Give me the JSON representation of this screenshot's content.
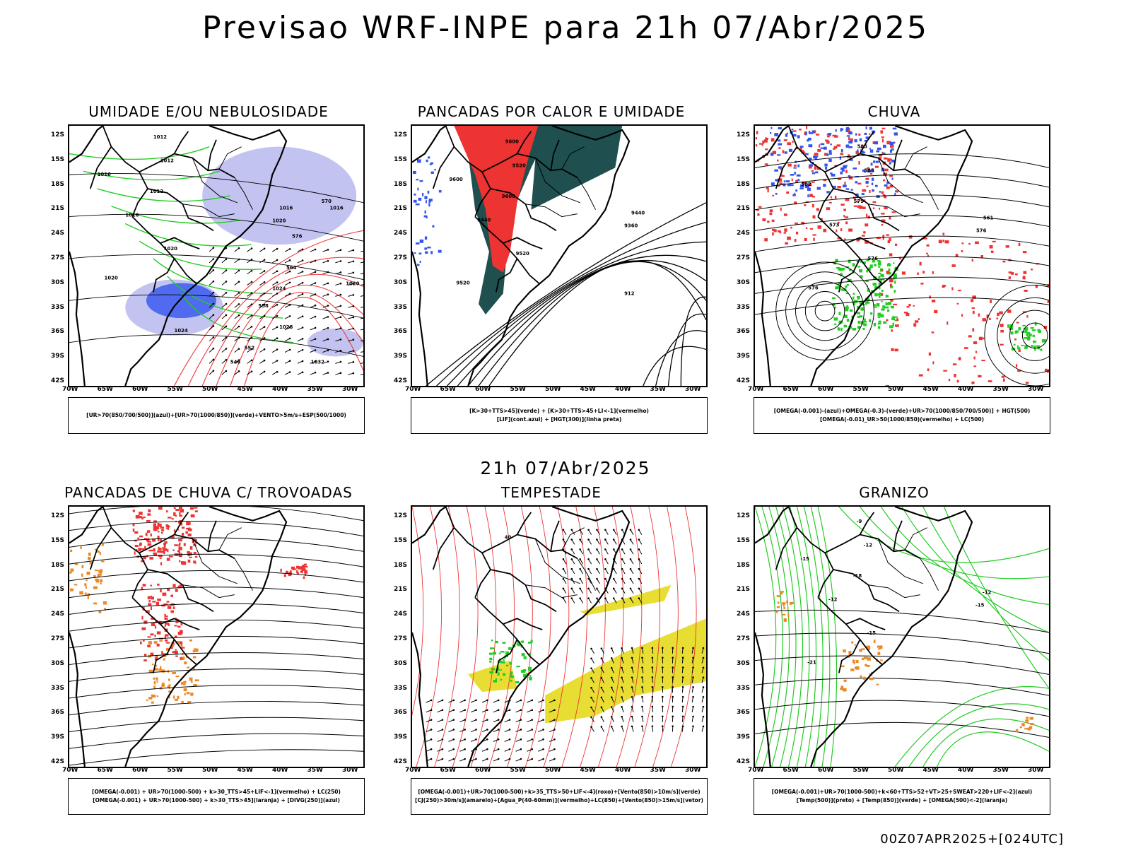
{
  "main_title": "Previsao WRF-INPE  para 21h 07/Abr/2025",
  "mid_title": "21h 07/Abr/2025",
  "footer": "00Z07APR2025+[024UTC]",
  "lat_ticks": [
    "12S",
    "15S",
    "18S",
    "21S",
    "24S",
    "27S",
    "30S",
    "33S",
    "36S",
    "39S",
    "42S"
  ],
  "lon_ticks": [
    "70W",
    "65W",
    "60W",
    "55W",
    "50W",
    "45W",
    "40W",
    "35W",
    "30W"
  ],
  "colors": {
    "blue": "#3355ee",
    "light_blue": "#b8b8f0",
    "green": "#22cc22",
    "red": "#ee3333",
    "dark_green": "#1f4f4f",
    "orange": "#ee8822",
    "yellow": "#e8dd33"
  },
  "panels": [
    {
      "title": "UMIDADE E/OU NEBULOSIDADE",
      "legend": [
        "[UR>70(850/700/500)](azul)+[UR>70(1000/850)](verde)+VENTO>5m/s+ESP(500/1000)"
      ],
      "contour_labels": [
        "1012",
        "1012",
        "1016",
        "1012",
        "1016",
        "1020",
        "1020",
        "1020",
        "1016",
        "1024",
        "1028",
        "1032",
        "1016",
        "1024",
        "1020",
        "570",
        "576",
        "564",
        "558",
        "552",
        "546"
      ]
    },
    {
      "title": "PANCADAS POR CALOR E UMIDADE",
      "legend": [
        "[K>30+TTS>45](verde) + [K>30+TTS>45+LI<-1](vermelho)",
        "[LIF](cont.azul) + [HGT(300)](linha preta)"
      ],
      "contour_labels": [
        "9600",
        "9520",
        "9600",
        "9600",
        "9440",
        "9520",
        "9520",
        "9360",
        "9440",
        "912"
      ]
    },
    {
      "title": "CHUVA",
      "legend": [
        "[OMEGA(-0.001)-(azul)+OMEGA(-0.3)-(verde)+UR>70(1000/850/700/500)] + HGT(500)",
        "[OMEGA(-0.01)_UR>50(1000/850)(vermelho) + LC(500)"
      ],
      "contour_labels": [
        "585",
        "585",
        "582",
        "579",
        "573",
        "576",
        "576",
        "576",
        "561"
      ]
    },
    {
      "title": "PANCADAS DE CHUVA C/ TROVOADAS",
      "legend": [
        "[OMEGA(-0.001) + UR>70(1000-500) + k>30_TTS>45+LIF<-1](vermelho) + LC(250)",
        "[OMEGA(-0.001) + UR>70(1000-500) + k>30_TTS>45](laranja) + [DIVG(250)](azul)"
      ],
      "contour_labels": []
    },
    {
      "title": "TEMPESTADE",
      "legend": [
        "[OMEGA(-0.001)+UR>70(1000-500)+k>35_TTS>50+LIF<-4](roxo)+[Vento(850)>10m/s](verde)",
        "[CJ(250)>30m/s](amarelo)+[Agua_P(40-60mm)](vermelho)+LC(850)+[Vento(850)>15m/s](vetor)"
      ],
      "contour_labels": [
        "40"
      ]
    },
    {
      "title": "GRANIZO",
      "legend": [
        "[OMEGA(-0.001)+UR>70(1000-500)+k<60+TTS>52+VT>25+SWEAT>220+LIF<-2](azul)",
        "[Temp(500)](preto) + [Temp(850)](verde) + [OMEGA(500)<-2](laranja)"
      ],
      "contour_labels": [
        "-9",
        "-12",
        "-15",
        "-18",
        "-12",
        "-15",
        "-21",
        "-15",
        "-12"
      ]
    }
  ]
}
